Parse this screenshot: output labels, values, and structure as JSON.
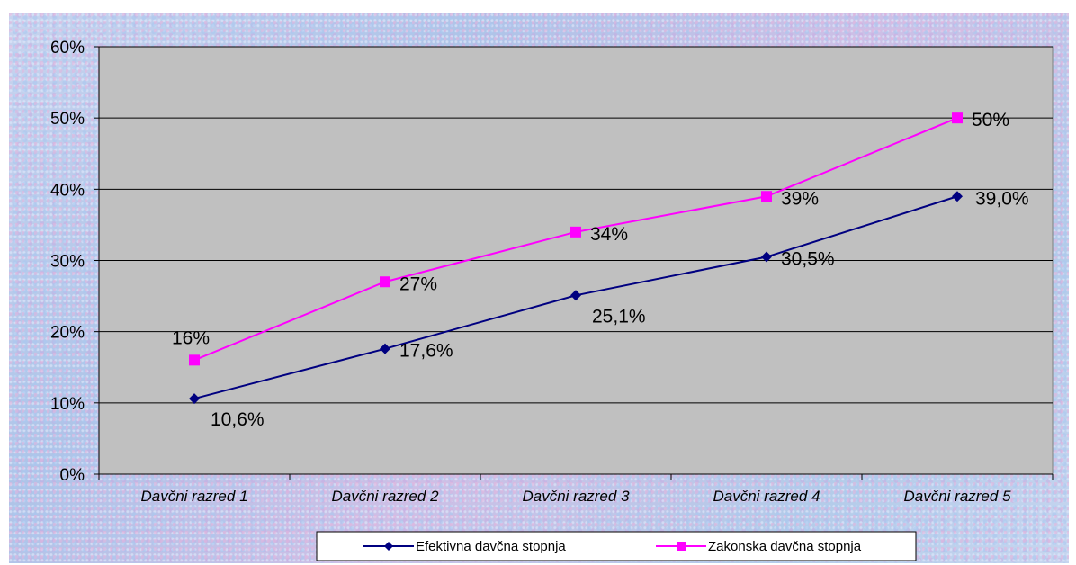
{
  "chart_data": {
    "type": "line",
    "categories": [
      "Davčni razred 1",
      "Davčni razred 2",
      "Davčni razred 3",
      "Davčni razred 4",
      "Davčni razred 5"
    ],
    "ylim": [
      0,
      60
    ],
    "y_ticks": [
      "0%",
      "10%",
      "20%",
      "30%",
      "40%",
      "50%",
      "60%"
    ],
    "grid": true,
    "legend_position": "bottom",
    "series": [
      {
        "name": "Efektivna davčna stopnja",
        "values": [
          10.6,
          17.6,
          25.1,
          30.5,
          39.0
        ],
        "labels": [
          "10,6%",
          "17,6%",
          "25,1%",
          "30,5%",
          "39,0%"
        ],
        "color": "#000080",
        "marker": "diamond"
      },
      {
        "name": "Zakonska davčna stopnja",
        "values": [
          16,
          27,
          34,
          39,
          50
        ],
        "labels": [
          "16%",
          "27%",
          "34%",
          "39%",
          "50%"
        ],
        "color": "#ff00ff",
        "marker": "square"
      }
    ],
    "plot_background": "#c0c0c0"
  }
}
